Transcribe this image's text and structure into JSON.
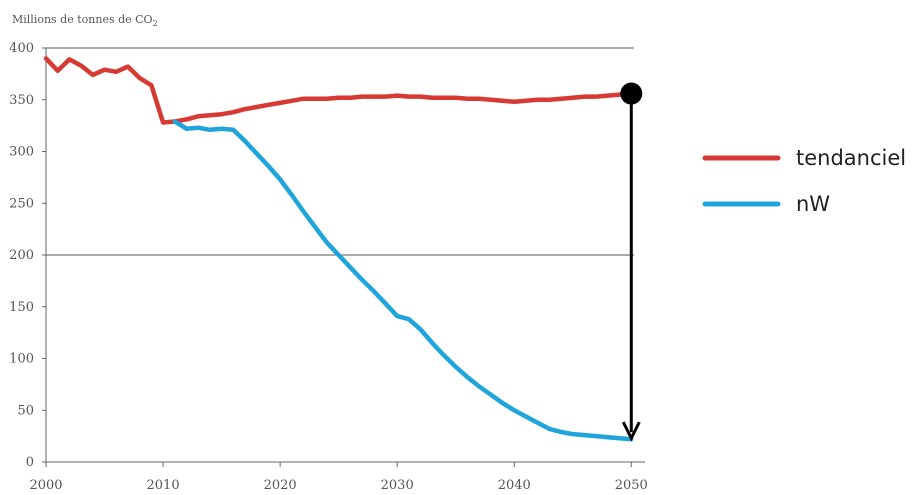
{
  "chart_data": {
    "type": "line",
    "ylabel": "Millions de tonnes de CO",
    "ylabel_sub": "2",
    "xlim": [
      2000,
      2051
    ],
    "ylim": [
      0,
      400
    ],
    "x_ticks": [
      2000,
      2010,
      2020,
      2030,
      2040,
      2050
    ],
    "y_ticks": [
      0,
      50,
      100,
      150,
      200,
      250,
      300,
      350,
      400
    ],
    "horizontal_gridlines": [
      200,
      400
    ],
    "legend_position": "right",
    "series": [
      {
        "name": "tendanciel",
        "color": "#d63a33",
        "points": [
          [
            2000,
            390
          ],
          [
            2001,
            378
          ],
          [
            2002,
            389
          ],
          [
            2003,
            383
          ],
          [
            2004,
            374
          ],
          [
            2005,
            379
          ],
          [
            2006,
            377
          ],
          [
            2007,
            382
          ],
          [
            2008,
            371
          ],
          [
            2009,
            364
          ],
          [
            2010,
            328
          ],
          [
            2011,
            329
          ],
          [
            2012,
            331
          ],
          [
            2013,
            334
          ],
          [
            2014,
            335
          ],
          [
            2015,
            336
          ],
          [
            2016,
            338
          ],
          [
            2017,
            341
          ],
          [
            2018,
            343
          ],
          [
            2019,
            345
          ],
          [
            2020,
            347
          ],
          [
            2021,
            349
          ],
          [
            2022,
            351
          ],
          [
            2023,
            351
          ],
          [
            2024,
            351
          ],
          [
            2025,
            352
          ],
          [
            2026,
            352
          ],
          [
            2027,
            353
          ],
          [
            2028,
            353
          ],
          [
            2029,
            353
          ],
          [
            2030,
            354
          ],
          [
            2031,
            353
          ],
          [
            2032,
            353
          ],
          [
            2033,
            352
          ],
          [
            2034,
            352
          ],
          [
            2035,
            352
          ],
          [
            2036,
            351
          ],
          [
            2037,
            351
          ],
          [
            2038,
            350
          ],
          [
            2039,
            349
          ],
          [
            2040,
            348
          ],
          [
            2041,
            349
          ],
          [
            2042,
            350
          ],
          [
            2043,
            350
          ],
          [
            2044,
            351
          ],
          [
            2045,
            352
          ],
          [
            2046,
            353
          ],
          [
            2047,
            353
          ],
          [
            2048,
            354
          ],
          [
            2049,
            355
          ],
          [
            2050,
            356
          ]
        ]
      },
      {
        "name": "nW",
        "color": "#1fa4dc",
        "points": [
          [
            2011,
            329
          ],
          [
            2012,
            322
          ],
          [
            2013,
            323
          ],
          [
            2014,
            321
          ],
          [
            2015,
            322
          ],
          [
            2016,
            321
          ],
          [
            2017,
            310
          ],
          [
            2018,
            298
          ],
          [
            2019,
            286
          ],
          [
            2020,
            273
          ],
          [
            2021,
            258
          ],
          [
            2022,
            242
          ],
          [
            2023,
            227
          ],
          [
            2024,
            212
          ],
          [
            2025,
            200
          ],
          [
            2026,
            188
          ],
          [
            2027,
            176
          ],
          [
            2028,
            165
          ],
          [
            2029,
            153
          ],
          [
            2030,
            141
          ],
          [
            2031,
            138
          ],
          [
            2032,
            128
          ],
          [
            2033,
            115
          ],
          [
            2034,
            103
          ],
          [
            2035,
            92
          ],
          [
            2036,
            82
          ],
          [
            2037,
            73
          ],
          [
            2038,
            65
          ],
          [
            2039,
            57
          ],
          [
            2040,
            50
          ],
          [
            2041,
            44
          ],
          [
            2042,
            38
          ],
          [
            2043,
            32
          ],
          [
            2044,
            29
          ],
          [
            2045,
            27
          ],
          [
            2046,
            26
          ],
          [
            2047,
            25
          ],
          [
            2048,
            24
          ],
          [
            2049,
            23
          ],
          [
            2050,
            22
          ]
        ]
      }
    ],
    "annotation": {
      "type": "arrow",
      "color": "#000000",
      "x": 2050,
      "from_y": 356,
      "to_y": 25
    }
  }
}
